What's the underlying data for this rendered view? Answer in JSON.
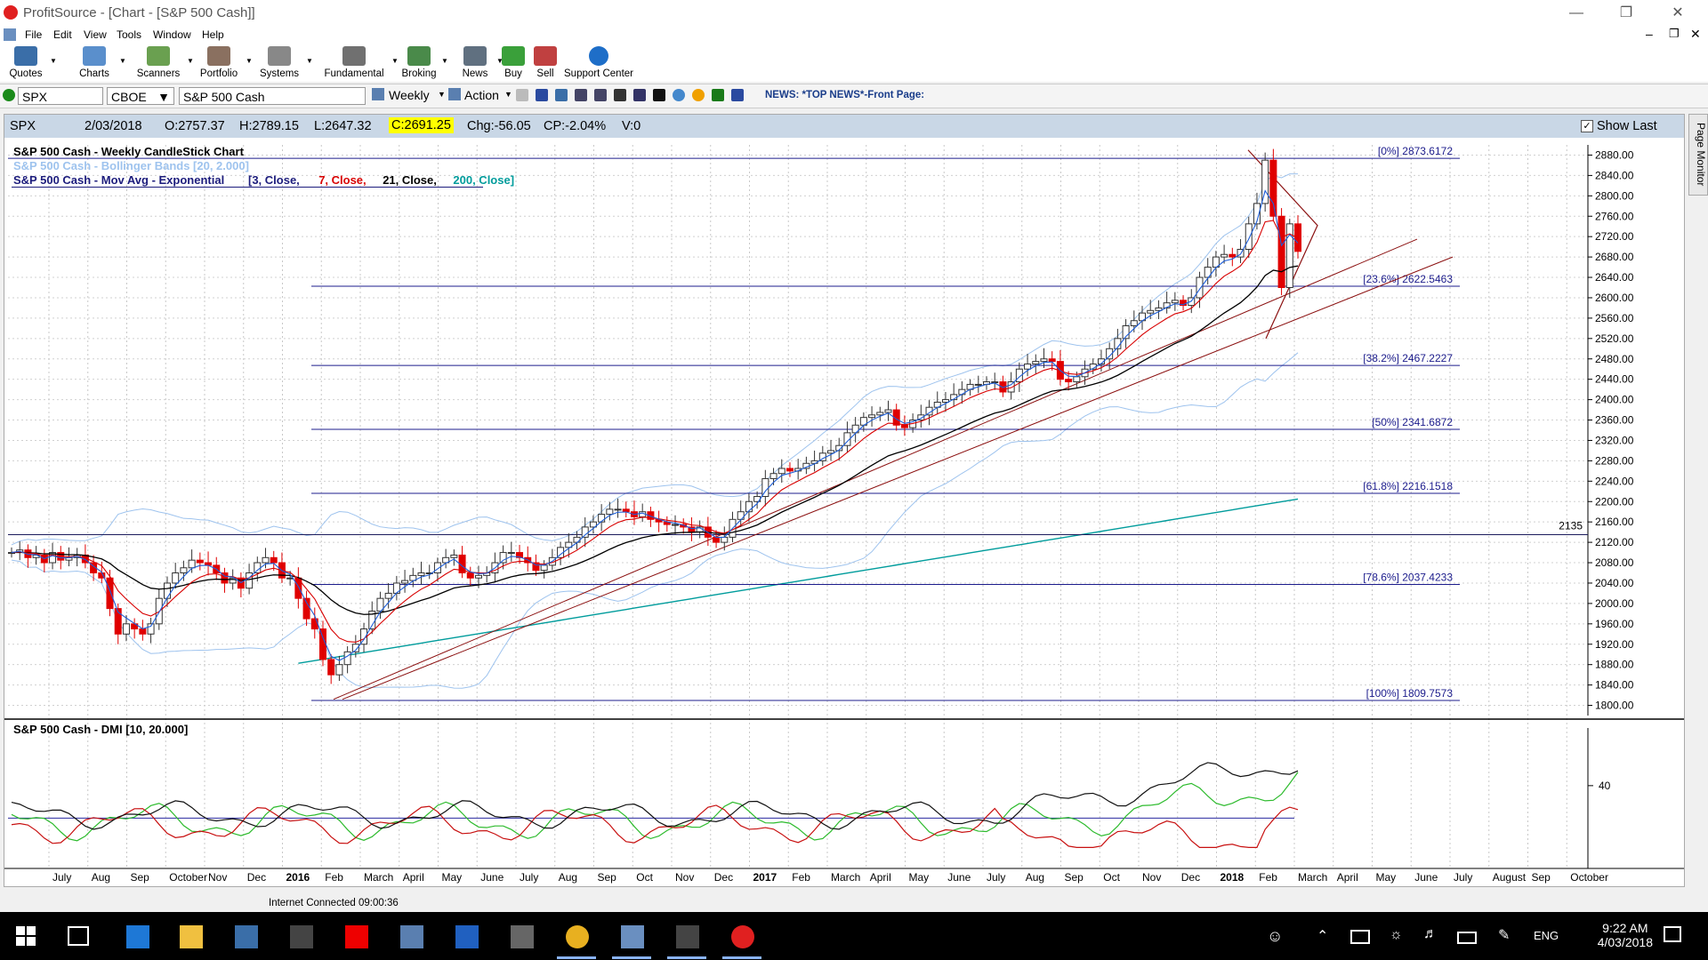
{
  "window": {
    "title": "ProfitSource - [Chart - [S&P 500 Cash]]"
  },
  "menu": [
    "File",
    "Edit",
    "View",
    "Tools",
    "Window",
    "Help"
  ],
  "toolbar": [
    {
      "label": "Quotes",
      "icon": "quotes-icon"
    },
    {
      "label": "Charts",
      "icon": "charts-icon"
    },
    {
      "label": "Scanners",
      "icon": "scanners-icon"
    },
    {
      "label": "Portfolio",
      "icon": "portfolio-icon"
    },
    {
      "label": "Systems",
      "icon": "systems-icon"
    },
    {
      "label": "Fundamental",
      "icon": "fundamental-icon"
    },
    {
      "label": "Broking",
      "icon": "broking-icon"
    },
    {
      "label": "News",
      "icon": "news-icon"
    },
    {
      "label": "Buy",
      "icon": "buy-icon"
    },
    {
      "label": "Sell",
      "icon": "sell-icon"
    },
    {
      "label": "Support Center",
      "icon": "help-icon"
    }
  ],
  "symbar": {
    "symbol": "SPX",
    "exchange": "CBOE",
    "name": "S&P 500 Cash",
    "period": "Weekly",
    "action": "Action",
    "news": "NEWS: *TOP NEWS*-Front Page:"
  },
  "quote": {
    "symbol": "SPX",
    "date": "2/03/2018",
    "open": "O:2757.37",
    "high": "H:2789.15",
    "low": "L:2647.32",
    "close": "C:2691.25",
    "chg": "Chg:-56.05",
    "cp": "CP:-2.04%",
    "vol": "V:0",
    "show_last": "Show Last"
  },
  "legend": {
    "line1": "S&P 500 Cash - Weekly CandleStick Chart",
    "line2": "S&P 500 Cash - Bollinger Bands [20, 2.000]",
    "line3_prefix": "S&P 500 Cash - Mov Avg - Exponential",
    "line3_params": [
      "[3, Close, ",
      "7, Close, ",
      "21, Close, ",
      "200, Close]"
    ]
  },
  "dmi_label": "S&P 500 Cash - DMI [10, 20.000]",
  "side_tab": "Page Monitor",
  "status_text": "Internet Connected 09:00:36",
  "clock": {
    "time": "9:22 AM",
    "date": "4/03/2018"
  },
  "lang": "ENG",
  "colors": {
    "up": "#4a8a3a",
    "down": "#e00000",
    "ema3": "#1e5ed8",
    "ema7": "#d80000",
    "ema21": "#000000",
    "ema200": "#009c9c",
    "bb": "#9ec3ee",
    "fib": "#1c1c8c",
    "trend": "#8b1010",
    "dmi_adx": "#111111",
    "dmi_plus": "#2dbb2d",
    "dmi_minus": "#c81010",
    "highlight": "#ffff00"
  },
  "chart_data": {
    "type": "candlestick",
    "title": "S&P 500 Cash - Weekly CandleStick Chart",
    "ylim": [
      1780,
      2900
    ],
    "yticks": [
      1800,
      1840,
      1880,
      1920,
      1960,
      2000,
      2040,
      2080,
      2120,
      2160,
      2200,
      2240,
      2280,
      2320,
      2360,
      2400,
      2440,
      2480,
      2520,
      2560,
      2600,
      2640,
      2680,
      2720,
      2760,
      2800,
      2840,
      2880
    ],
    "x_labels": [
      "July",
      "Aug",
      "Sep",
      "October",
      "Nov",
      "Dec",
      "2016",
      "Feb",
      "March",
      "April",
      "May",
      "June",
      "July",
      "Aug",
      "Sep",
      "Oct",
      "Nov",
      "Dec",
      "2017",
      "Feb",
      "March",
      "April",
      "May",
      "June",
      "July",
      "Aug",
      "Sep",
      "Oct",
      "Nov",
      "Dec",
      "2018",
      "Feb",
      "March",
      "April",
      "May",
      "June",
      "July",
      "August",
      "Sep",
      "October"
    ],
    "closes": [
      2100,
      2105,
      2090,
      2095,
      2080,
      2100,
      2085,
      2090,
      2095,
      2080,
      2060,
      2050,
      1990,
      1940,
      1960,
      1950,
      1940,
      1960,
      2010,
      2040,
      2060,
      2070,
      2085,
      2080,
      2075,
      2060,
      2040,
      2050,
      2030,
      2060,
      2080,
      2090,
      2080,
      2050,
      2050,
      2010,
      1970,
      1950,
      1890,
      1860,
      1880,
      1905,
      1920,
      1950,
      1985,
      2010,
      2020,
      2040,
      2045,
      2055,
      2060,
      2060,
      2080,
      2090,
      2095,
      2060,
      2050,
      2055,
      2060,
      2080,
      2100,
      2100,
      2090,
      2080,
      2065,
      2075,
      2090,
      2110,
      2120,
      2130,
      2150,
      2160,
      2175,
      2185,
      2185,
      2180,
      2170,
      2180,
      2165,
      2160,
      2155,
      2155,
      2150,
      2140,
      2150,
      2130,
      2120,
      2130,
      2165,
      2180,
      2200,
      2210,
      2245,
      2255,
      2265,
      2260,
      2265,
      2275,
      2280,
      2295,
      2300,
      2310,
      2335,
      2350,
      2365,
      2370,
      2375,
      2380,
      2350,
      2345,
      2360,
      2370,
      2385,
      2395,
      2400,
      2410,
      2420,
      2430,
      2430,
      2435,
      2435,
      2415,
      2435,
      2460,
      2470,
      2475,
      2480,
      2475,
      2440,
      2435,
      2445,
      2460,
      2470,
      2480,
      2500,
      2520,
      2545,
      2555,
      2570,
      2575,
      2580,
      2590,
      2595,
      2585,
      2600,
      2640,
      2660,
      2680,
      2685,
      2680,
      2695,
      2745,
      2785,
      2870,
      2760,
      2620,
      2745,
      2691
    ],
    "fib_levels": [
      {
        "label": "[0%] 2873.6172",
        "value": 2873.6172
      },
      {
        "label": "[23.6%] 2622.5463",
        "value": 2622.5463
      },
      {
        "label": "[38.2%] 2467.2227",
        "value": 2467.2227
      },
      {
        "label": "[50%] 2341.6872",
        "value": 2341.6872
      },
      {
        "label": "[61.8%] 2216.1518",
        "value": 2216.1518
      },
      {
        "label": "[78.6%] 2037.4233",
        "value": 2037.4233
      },
      {
        "label": "[100%] 1809.7573",
        "value": 1809.7573
      }
    ],
    "horizontal_line": {
      "label": "2135",
      "value": 2135
    },
    "dmi": {
      "ylabel_tick": "40",
      "threshold": 20
    }
  }
}
